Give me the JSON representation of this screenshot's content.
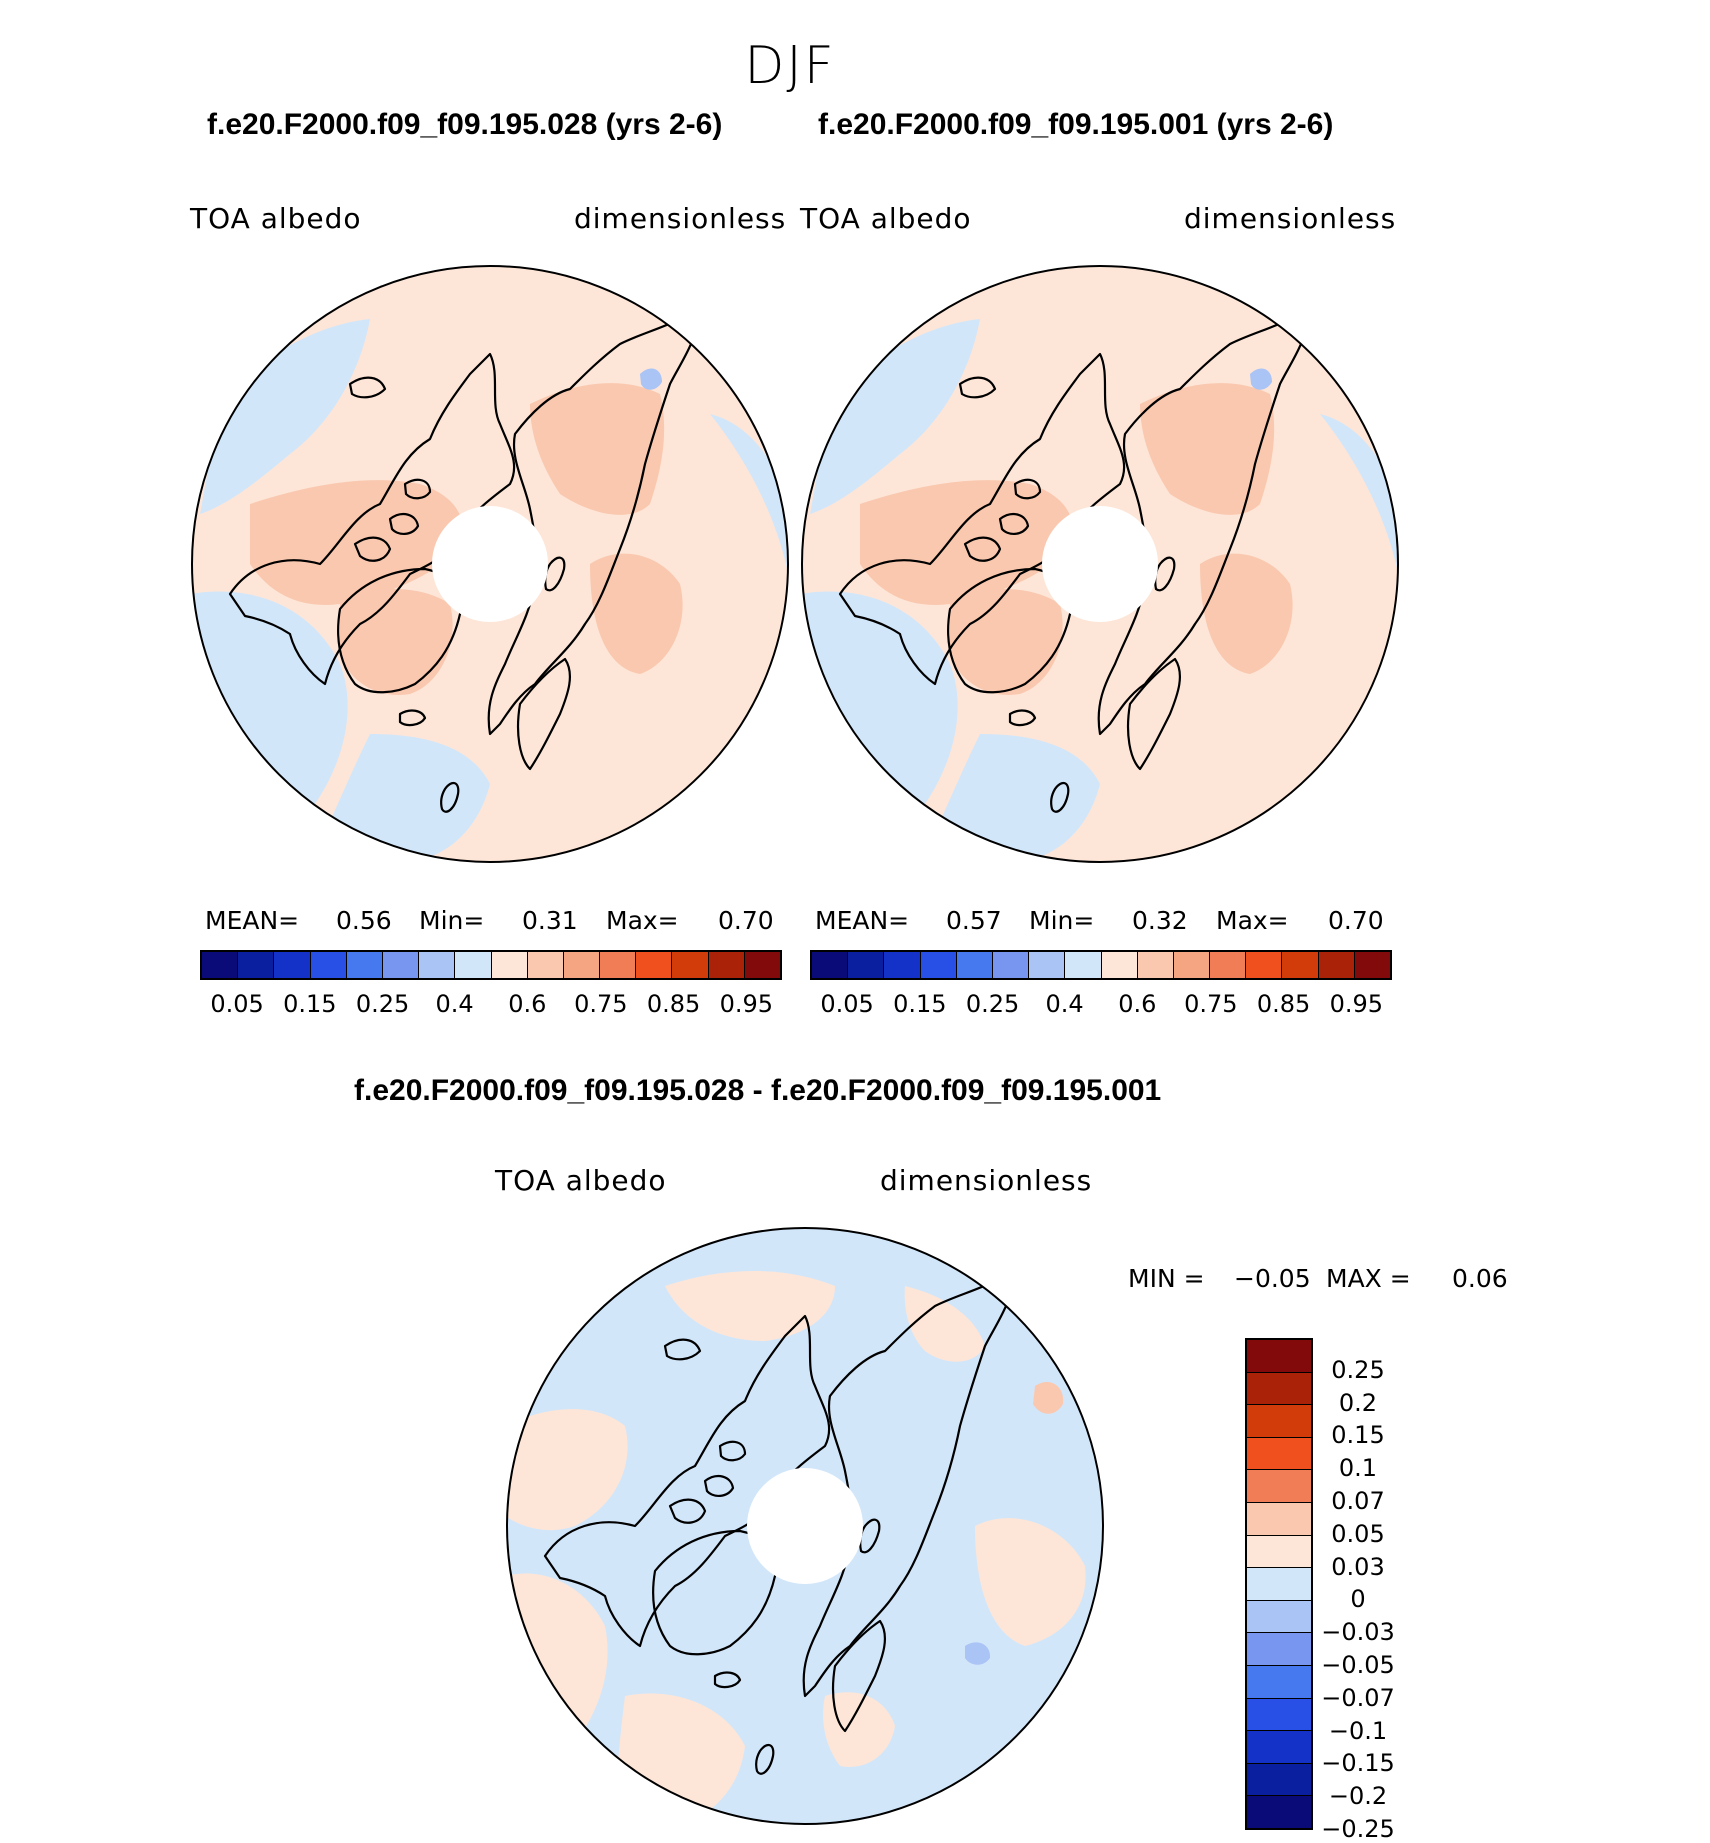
{
  "season": "DJF",
  "panels": [
    {
      "case_title": "f.e20.F2000.f09_f09.195.028 (yrs 2-6)",
      "variable": "TOA albedo",
      "units": "dimensionless",
      "mean_label": "MEAN=",
      "mean": "0.56",
      "min_label": "Min=",
      "min": "0.31",
      "max_label": "Max=",
      "max": "0.70"
    },
    {
      "case_title": "f.e20.F2000.f09_f09.195.001 (yrs 2-6)",
      "variable": "TOA albedo",
      "units": "dimensionless",
      "mean_label": "MEAN=",
      "mean": "0.57",
      "min_label": "Min=",
      "min": "0.32",
      "max_label": "Max=",
      "max": "0.70"
    }
  ],
  "field_colorbar": {
    "colors": [
      "#0a0a78",
      "#0a1ea0",
      "#1432c8",
      "#2850e6",
      "#4678f0",
      "#7896f0",
      "#aac4f5",
      "#d2e6fa",
      "#fde6d8",
      "#fac8af",
      "#f5a582",
      "#f07d55",
      "#f0501e",
      "#d23c0a",
      "#aa2308",
      "#820a0a"
    ],
    "tick_labels": [
      "0.05",
      "0.15",
      "0.25",
      "0.4",
      "0.6",
      "0.75",
      "0.85",
      "0.95"
    ]
  },
  "difference": {
    "title": "f.e20.F2000.f09_f09.195.028 - f.e20.F2000.f09_f09.195.001",
    "variable": "TOA albedo",
    "units": "dimensionless",
    "min_label": "MIN =",
    "min": "−0.05",
    "max_label": "MAX =",
    "max": "0.06"
  },
  "difference_colorbar": {
    "colors": [
      "#820a0a",
      "#aa2308",
      "#d23c0a",
      "#f0501e",
      "#f07d55",
      "#fac8af",
      "#fde6d8",
      "#d2e6fa",
      "#aac4f5",
      "#7896f0",
      "#4678f0",
      "#2850e6",
      "#1432c8",
      "#0a1ea0",
      "#0a0a78"
    ],
    "tick_labels": [
      "0.25",
      "0.2",
      "0.15",
      "0.1",
      "0.07",
      "0.05",
      "0.03",
      "0",
      "−0.03",
      "−0.05",
      "−0.07",
      "−0.1",
      "−0.15",
      "−0.2",
      "−0.25"
    ]
  },
  "map_palette": {
    "ocean_low": "#d2e6fa",
    "mid": "#fde6d8",
    "high": "#fac8af",
    "very_low": "#aac4f5",
    "coast": "#000000"
  }
}
